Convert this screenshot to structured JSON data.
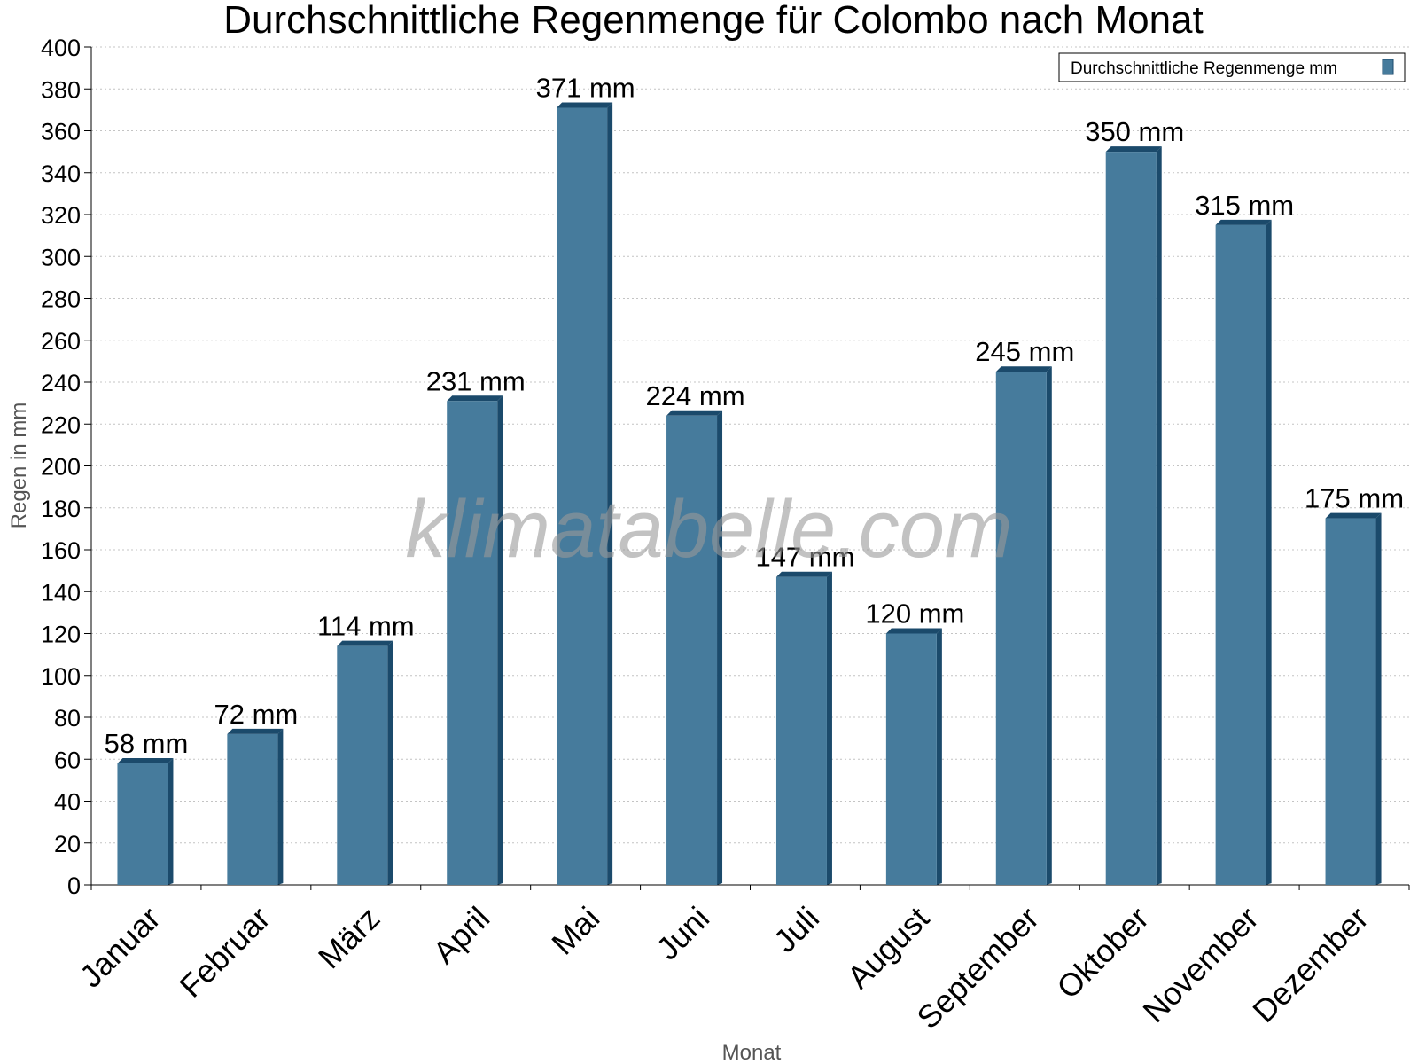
{
  "chart_data": {
    "type": "bar",
    "title": "Durchschnittliche Regenmenge für Colombo nach Monat",
    "xlabel": "Monat",
    "ylabel": "Regen in mm",
    "categories": [
      "Januar",
      "Februar",
      "März",
      "April",
      "Mai",
      "Juni",
      "Juli",
      "August",
      "September",
      "Oktober",
      "November",
      "Dezember"
    ],
    "series": [
      {
        "name": "Durchschnittliche Regenmenge mm",
        "values": [
          58,
          72,
          114,
          231,
          371,
          224,
          147,
          120,
          245,
          350,
          315,
          175
        ],
        "color": "#467b9c",
        "edge_color": "#1b4a6b"
      }
    ],
    "data_labels": [
      "58 mm",
      "72 mm",
      "114 mm",
      "231 mm",
      "371 mm",
      "224 mm",
      "147 mm",
      "120 mm",
      "245 mm",
      "350 mm",
      "315 mm",
      "175 mm"
    ],
    "ylim": [
      0,
      400
    ],
    "yticks": [
      0,
      20,
      40,
      60,
      80,
      100,
      120,
      140,
      160,
      180,
      200,
      220,
      240,
      260,
      280,
      300,
      320,
      340,
      360,
      380,
      400
    ],
    "grid": true,
    "legend_position": "top-right"
  },
  "watermark": "klimatabelle.com"
}
